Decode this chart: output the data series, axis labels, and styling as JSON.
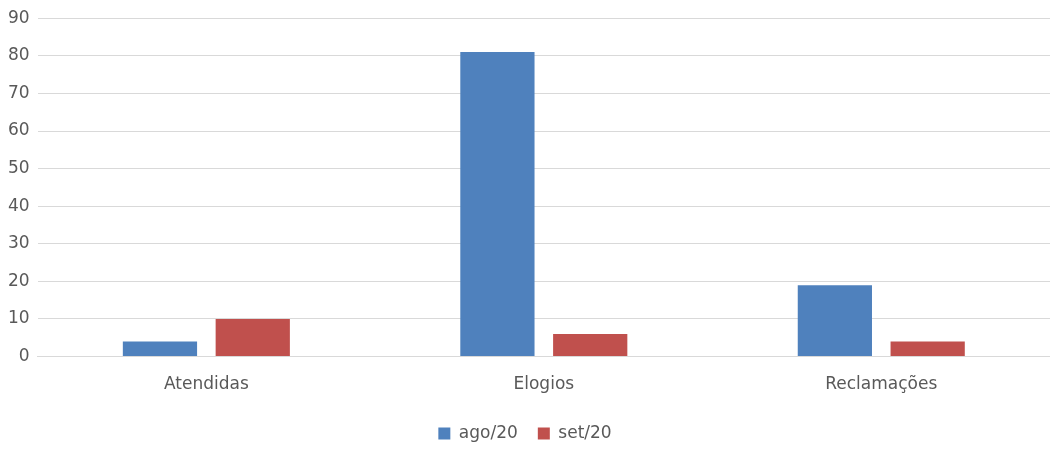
{
  "chart_data": {
    "type": "bar",
    "categories": [
      "Atendidas",
      "Elogios",
      "Reclamações"
    ],
    "series": [
      {
        "name": "ago/20",
        "color": "#4f81bd",
        "values": [
          4,
          81,
          19
        ]
      },
      {
        "name": "set/20",
        "color": "#c0504d",
        "values": [
          10,
          6,
          4
        ]
      }
    ],
    "ylim": [
      0,
      90
    ],
    "yticks": [
      0,
      10,
      20,
      30,
      40,
      50,
      60,
      70,
      80,
      90
    ],
    "grid": "y",
    "legend": "bottom"
  }
}
